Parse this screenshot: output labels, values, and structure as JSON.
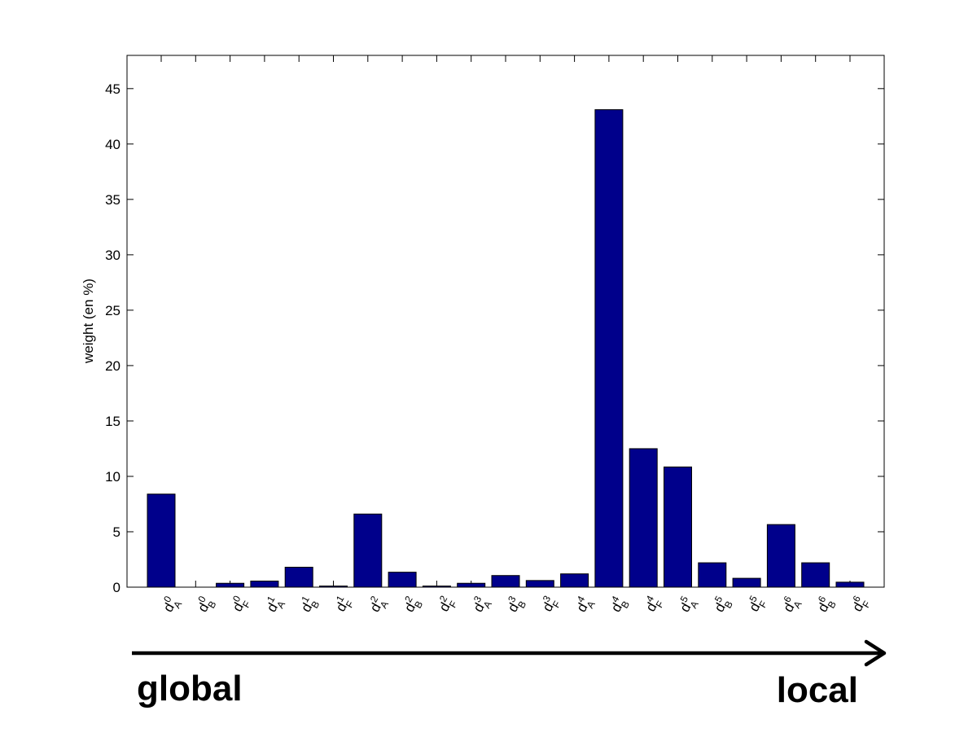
{
  "chart_data": {
    "type": "bar",
    "ylabel": "weight (en %)",
    "xlabel": "",
    "title": "",
    "ylim": [
      0,
      48
    ],
    "yticks": [
      0,
      5,
      10,
      15,
      20,
      25,
      30,
      35,
      40,
      45
    ],
    "grid": false,
    "bar_color": "#00008B",
    "categories": [
      {
        "base": "d",
        "sup": "0",
        "sub": "A"
      },
      {
        "base": "d",
        "sup": "0",
        "sub": "B"
      },
      {
        "base": "d",
        "sup": "0",
        "sub": "F"
      },
      {
        "base": "d",
        "sup": "1",
        "sub": "A"
      },
      {
        "base": "d",
        "sup": "1",
        "sub": "B"
      },
      {
        "base": "d",
        "sup": "1",
        "sub": "F"
      },
      {
        "base": "d",
        "sup": "2",
        "sub": "A"
      },
      {
        "base": "d",
        "sup": "2",
        "sub": "B"
      },
      {
        "base": "d",
        "sup": "2",
        "sub": "F"
      },
      {
        "base": "d",
        "sup": "3",
        "sub": "A"
      },
      {
        "base": "d",
        "sup": "3",
        "sub": "B"
      },
      {
        "base": "d",
        "sup": "3",
        "sub": "F"
      },
      {
        "base": "d",
        "sup": "4",
        "sub": "A"
      },
      {
        "base": "d",
        "sup": "4",
        "sub": "B"
      },
      {
        "base": "d",
        "sup": "4",
        "sub": "F"
      },
      {
        "base": "d",
        "sup": "5",
        "sub": "A"
      },
      {
        "base": "d",
        "sup": "5",
        "sub": "B"
      },
      {
        "base": "d",
        "sup": "5",
        "sub": "F"
      },
      {
        "base": "d",
        "sup": "6",
        "sub": "A"
      },
      {
        "base": "d",
        "sup": "6",
        "sub": "B"
      },
      {
        "base": "d",
        "sup": "6",
        "sub": "F"
      }
    ],
    "values": [
      8.4,
      0.0,
      0.35,
      0.55,
      1.8,
      0.1,
      6.6,
      1.35,
      0.1,
      0.35,
      1.05,
      0.6,
      1.2,
      43.1,
      12.5,
      10.85,
      2.2,
      0.8,
      5.65,
      2.2,
      0.45
    ]
  },
  "annotation": {
    "left_label": "global",
    "right_label": "local"
  }
}
